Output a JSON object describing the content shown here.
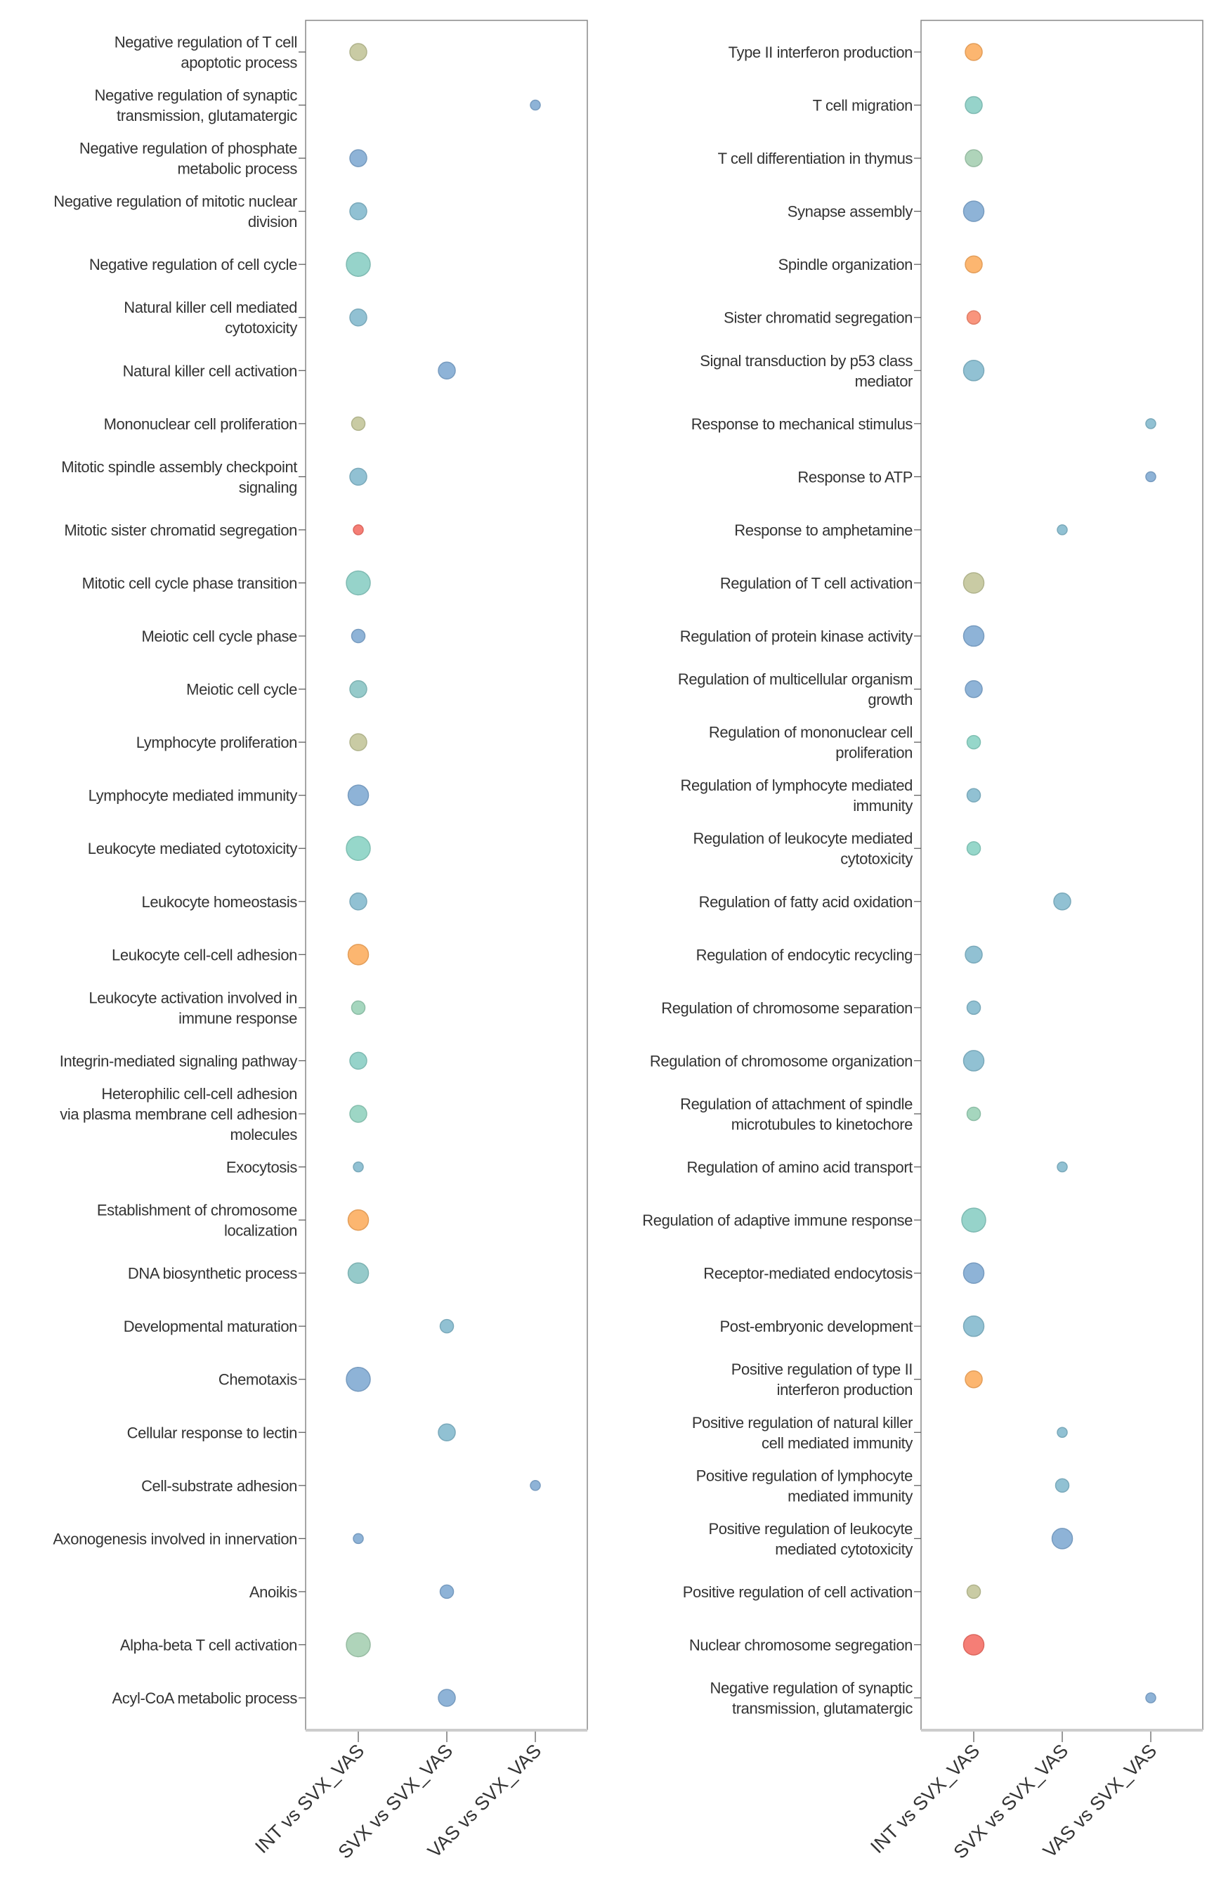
{
  "chart_data": [
    {
      "type": "scatter",
      "x_categories": [
        "INT vs SVX_VAS",
        "SVX vs SVX_VAS",
        "VAS vs SVX_VAS"
      ],
      "grid": false,
      "size_note_scale": [
        1,
        5
      ],
      "points": [
        {
          "term": [
            "Negative regulation of T cell",
            "apoptotic process"
          ],
          "x": 0,
          "size": 3,
          "color": "#c4c79c"
        },
        {
          "term": [
            "Negative regulation of synaptic",
            "transmission, glutamatergic"
          ],
          "x": 2,
          "size": 1,
          "color": "#84acd4"
        },
        {
          "term": [
            "Negative regulation of phosphate",
            "metabolic process"
          ],
          "x": 0,
          "size": 3,
          "color": "#84acd4"
        },
        {
          "term": [
            "Negative regulation of mitotic nuclear",
            "division"
          ],
          "x": 0,
          "size": 3,
          "color": "#88bccf"
        },
        {
          "term": [
            "Negative regulation of cell cycle"
          ],
          "x": 0,
          "size": 5,
          "color": "#8dcfc6"
        },
        {
          "term": [
            "Natural killer cell mediated",
            "cytotoxicity"
          ],
          "x": 0,
          "size": 3,
          "color": "#88bccf"
        },
        {
          "term": [
            "Natural killer cell activation"
          ],
          "x": 1,
          "size": 3,
          "color": "#84acd4"
        },
        {
          "term": [
            "Mononuclear cell proliferation"
          ],
          "x": 0,
          "size": 2,
          "color": "#c4c79c"
        },
        {
          "term": [
            "Mitotic spindle assembly checkpoint",
            "signaling"
          ],
          "x": 0,
          "size": 3,
          "color": "#88bccf"
        },
        {
          "term": [
            "Mitotic sister chromatid segregation"
          ],
          "x": 0,
          "size": 1,
          "color": "#f4736a"
        },
        {
          "term": [
            "Mitotic cell cycle phase transition"
          ],
          "x": 0,
          "size": 5,
          "color": "#8dcfc6"
        },
        {
          "term": [
            "Meiotic cell cycle phase"
          ],
          "x": 0,
          "size": 2,
          "color": "#84acd4"
        },
        {
          "term": [
            "Meiotic cell cycle"
          ],
          "x": 0,
          "size": 3,
          "color": "#8cc6c6"
        },
        {
          "term": [
            "Lymphocyte proliferation"
          ],
          "x": 0,
          "size": 3,
          "color": "#c4c79c"
        },
        {
          "term": [
            "Lymphocyte mediated immunity"
          ],
          "x": 0,
          "size": 4,
          "color": "#84acd4"
        },
        {
          "term": [
            "Leukocyte mediated cytotoxicity"
          ],
          "x": 0,
          "size": 5,
          "color": "#8dd4c6"
        },
        {
          "term": [
            "Leukocyte homeostasis"
          ],
          "x": 0,
          "size": 3,
          "color": "#88bccf"
        },
        {
          "term": [
            "Leukocyte cell-cell adhesion"
          ],
          "x": 0,
          "size": 4,
          "color": "#fcb064"
        },
        {
          "term": [
            "Leukocyte activation involved in",
            "immune response"
          ],
          "x": 0,
          "size": 2,
          "color": "#9dd2b8"
        },
        {
          "term": [
            "Integrin-mediated signaling pathway"
          ],
          "x": 0,
          "size": 3,
          "color": "#8dcfc6"
        },
        {
          "term": [
            "Heterophilic cell-cell adhesion",
            "via plasma membrane cell adhesion",
            "molecules"
          ],
          "x": 0,
          "size": 3,
          "color": "#95d3c0"
        },
        {
          "term": [
            "Exocytosis"
          ],
          "x": 0,
          "size": 1,
          "color": "#88bccf"
        },
        {
          "term": [
            "Establishment of chromosome",
            "localization"
          ],
          "x": 0,
          "size": 4,
          "color": "#fcb064"
        },
        {
          "term": [
            "DNA biosynthetic process"
          ],
          "x": 0,
          "size": 4,
          "color": "#8cc6c6"
        },
        {
          "term": [
            "Developmental maturation"
          ],
          "x": 1,
          "size": 2,
          "color": "#88bccf"
        },
        {
          "term": [
            "Chemotaxis"
          ],
          "x": 0,
          "size": 5,
          "color": "#84acd4"
        },
        {
          "term": [
            "Cellular response to lectin"
          ],
          "x": 1,
          "size": 3,
          "color": "#88bccf"
        },
        {
          "term": [
            "Cell-substrate adhesion"
          ],
          "x": 2,
          "size": 1,
          "color": "#84acd4"
        },
        {
          "term": [
            "Axonogenesis involved in innervation"
          ],
          "x": 0,
          "size": 1,
          "color": "#84acd4"
        },
        {
          "term": [
            "Anoikis"
          ],
          "x": 1,
          "size": 2,
          "color": "#84acd4"
        },
        {
          "term": [
            "Alpha-beta T cell activation"
          ],
          "x": 0,
          "size": 5,
          "color": "#a8d0b4"
        },
        {
          "term": [
            "Acyl-CoA metabolic process"
          ],
          "x": 1,
          "size": 3,
          "color": "#84acd4"
        }
      ]
    },
    {
      "type": "scatter",
      "x_categories": [
        "INT vs SVX_VAS",
        "SVX vs SVX_VAS",
        "VAS vs SVX_VAS"
      ],
      "grid": false,
      "points": [
        {
          "term": [
            "Type II interferon production"
          ],
          "x": 0,
          "size": 3,
          "color": "#fcb064"
        },
        {
          "term": [
            "T cell migration"
          ],
          "x": 0,
          "size": 3,
          "color": "#8dcfc6"
        },
        {
          "term": [
            "T cell differentiation in thymus"
          ],
          "x": 0,
          "size": 3,
          "color": "#a8d0b4"
        },
        {
          "term": [
            "Synapse assembly"
          ],
          "x": 0,
          "size": 4,
          "color": "#84acd4"
        },
        {
          "term": [
            "Spindle organization"
          ],
          "x": 0,
          "size": 3,
          "color": "#fcb064"
        },
        {
          "term": [
            "Sister chromatid segregation"
          ],
          "x": 0,
          "size": 2,
          "color": "#f98c72"
        },
        {
          "term": [
            "Signal transduction by p53 class",
            "mediator"
          ],
          "x": 0,
          "size": 4,
          "color": "#88bccf"
        },
        {
          "term": [
            "Response to mechanical stimulus"
          ],
          "x": 2,
          "size": 1,
          "color": "#88bccf"
        },
        {
          "term": [
            "Response to ATP"
          ],
          "x": 2,
          "size": 1,
          "color": "#84acd4"
        },
        {
          "term": [
            "Response to amphetamine"
          ],
          "x": 1,
          "size": 1,
          "color": "#88bccf"
        },
        {
          "term": [
            "Regulation of T cell activation"
          ],
          "x": 0,
          "size": 4,
          "color": "#c4c79c"
        },
        {
          "term": [
            "Regulation of protein kinase activity"
          ],
          "x": 0,
          "size": 4,
          "color": "#84acd4"
        },
        {
          "term": [
            "Regulation of multicellular organism",
            "growth"
          ],
          "x": 0,
          "size": 3,
          "color": "#84acd4"
        },
        {
          "term": [
            "Regulation of mononuclear cell",
            "proliferation"
          ],
          "x": 0,
          "size": 2,
          "color": "#8dd4c6"
        },
        {
          "term": [
            "Regulation of lymphocyte mediated",
            "immunity"
          ],
          "x": 0,
          "size": 2,
          "color": "#88bccf"
        },
        {
          "term": [
            "Regulation of leukocyte mediated",
            "cytotoxicity"
          ],
          "x": 0,
          "size": 2,
          "color": "#8dd4c6"
        },
        {
          "term": [
            "Regulation of fatty acid oxidation"
          ],
          "x": 1,
          "size": 3,
          "color": "#88bccf"
        },
        {
          "term": [
            "Regulation of endocytic recycling"
          ],
          "x": 0,
          "size": 3,
          "color": "#88bccf"
        },
        {
          "term": [
            "Regulation of chromosome separation"
          ],
          "x": 0,
          "size": 2,
          "color": "#88bccf"
        },
        {
          "term": [
            "Regulation of chromosome organization"
          ],
          "x": 0,
          "size": 4,
          "color": "#88bccf"
        },
        {
          "term": [
            "Regulation of attachment of spindle",
            "microtubules to kinetochore"
          ],
          "x": 0,
          "size": 2,
          "color": "#9dd2b8"
        },
        {
          "term": [
            "Regulation of amino acid transport"
          ],
          "x": 1,
          "size": 1,
          "color": "#88bccf"
        },
        {
          "term": [
            "Regulation of adaptive immune response"
          ],
          "x": 0,
          "size": 5,
          "color": "#8dcfc6"
        },
        {
          "term": [
            "Receptor-mediated endocytosis"
          ],
          "x": 0,
          "size": 4,
          "color": "#84acd4"
        },
        {
          "term": [
            "Post-embryonic development"
          ],
          "x": 0,
          "size": 4,
          "color": "#88bccf"
        },
        {
          "term": [
            "Positive regulation of type II",
            "interferon production"
          ],
          "x": 0,
          "size": 3,
          "color": "#fcb064"
        },
        {
          "term": [
            "Positive regulation of natural killer",
            "cell mediated immunity"
          ],
          "x": 1,
          "size": 1,
          "color": "#88bccf"
        },
        {
          "term": [
            "Positive regulation of lymphocyte",
            "mediated immunity"
          ],
          "x": 1,
          "size": 2,
          "color": "#88bccf"
        },
        {
          "term": [
            "Positive regulation of leukocyte",
            "mediated cytotoxicity"
          ],
          "x": 1,
          "size": 4,
          "color": "#84acd4"
        },
        {
          "term": [
            "Positive regulation of cell activation"
          ],
          "x": 0,
          "size": 2,
          "color": "#c4c79c"
        },
        {
          "term": [
            "Nuclear chromosome segregation"
          ],
          "x": 0,
          "size": 4,
          "color": "#f4736a"
        },
        {
          "term": [
            "Negative regulation of synaptic",
            "transmission, glutamatergic"
          ],
          "x": 2,
          "size": 1,
          "color": "#84acd4"
        }
      ]
    }
  ]
}
